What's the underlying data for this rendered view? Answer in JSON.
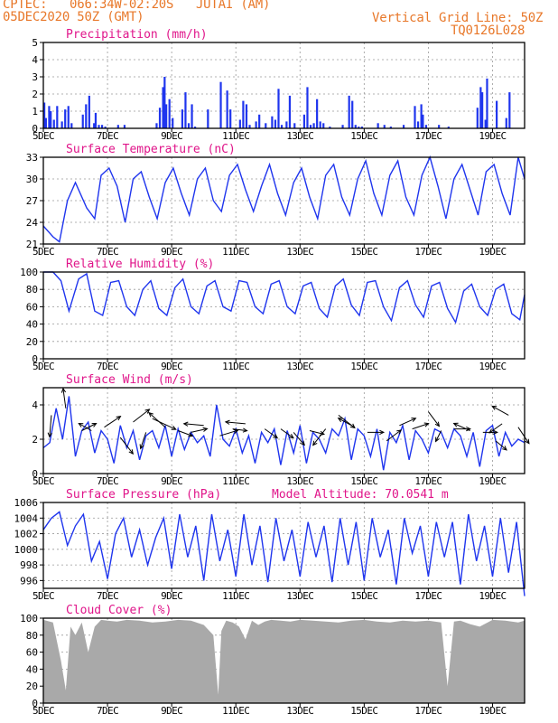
{
  "header": {
    "line1": "CPTEC:   066:34W-02:20S   JUTAI (AM)",
    "line2": "05DEC2020 50Z (GMT)",
    "grid_note": "Vertical Grid Line: 50Z",
    "code": "TQ0126L028"
  },
  "model_altitude": "Model Altitude: 70.0541 m",
  "colors": {
    "header": "#e8782a",
    "title": "#e0158a",
    "series": "#1f35ee",
    "cloud": "#a9a9a9",
    "arrow": "#000000"
  },
  "chart_data": [
    {
      "id": "precip",
      "type": "bar",
      "title": "Precipitation (mm/h)",
      "xlim": [
        0,
        15
      ],
      "ylim": [
        0,
        5
      ],
      "yticks": [
        0,
        1,
        2,
        3,
        4,
        5
      ],
      "xticks": [
        "5DEC",
        "7DEC",
        "9DEC",
        "11DEC",
        "13DEC",
        "15DEC",
        "17DEC",
        "19DEC"
      ],
      "xtick_pos": [
        0,
        2,
        4,
        6,
        8,
        10,
        12,
        14
      ],
      "x": [
        0.0,
        0.05,
        0.15,
        0.2,
        0.3,
        0.4,
        0.55,
        0.65,
        0.75,
        0.85,
        1.2,
        1.3,
        1.4,
        1.55,
        1.6,
        1.7,
        1.8,
        1.9,
        2.3,
        2.5,
        3.5,
        3.6,
        3.7,
        3.75,
        3.8,
        3.9,
        4.0,
        4.3,
        4.4,
        4.5,
        4.6,
        4.7,
        5.1,
        5.5,
        5.7,
        5.8,
        6.1,
        6.2,
        6.3,
        6.4,
        6.6,
        6.7,
        6.9,
        7.1,
        7.2,
        7.3,
        7.4,
        7.55,
        7.65,
        7.8,
        8.1,
        8.2,
        8.3,
        8.4,
        8.5,
        8.6,
        8.7,
        8.9,
        9.3,
        9.5,
        9.6,
        9.7,
        9.8,
        9.9,
        10.4,
        10.6,
        10.8,
        11.2,
        11.55,
        11.65,
        11.75,
        11.8,
        11.9,
        12.3,
        12.6,
        13.5,
        13.6,
        13.65,
        13.75,
        13.8,
        14.1,
        14.4,
        14.5
      ],
      "values": [
        1.5,
        0.6,
        1.3,
        1.0,
        0.5,
        1.3,
        0.4,
        1.1,
        1.3,
        0.3,
        0.8,
        1.4,
        1.9,
        0.3,
        0.9,
        0.2,
        0.2,
        0.1,
        0.2,
        0.2,
        0.3,
        1.2,
        2.4,
        3.0,
        1.4,
        1.7,
        0.6,
        1.1,
        2.1,
        0.3,
        1.4,
        0.1,
        1.1,
        2.7,
        2.2,
        1.1,
        0.5,
        1.6,
        1.4,
        0.2,
        0.4,
        0.8,
        0.3,
        0.7,
        0.5,
        2.3,
        0.2,
        0.4,
        1.9,
        0.3,
        0.8,
        2.4,
        0.2,
        0.3,
        1.7,
        0.4,
        0.3,
        0.1,
        0.2,
        1.9,
        1.6,
        0.2,
        0.1,
        0.1,
        0.3,
        0.2,
        0.1,
        0.2,
        1.3,
        0.4,
        1.4,
        0.8,
        0.2,
        0.2,
        0.1,
        1.2,
        2.4,
        2.1,
        0.5,
        2.9,
        1.6,
        0.6,
        2.1
      ]
    },
    {
      "id": "temp",
      "type": "line",
      "title": "Surface Temperature (nC)",
      "xlim": [
        0,
        15
      ],
      "ylim": [
        21,
        33
      ],
      "yticks": [
        21,
        24,
        27,
        30,
        33
      ],
      "xticks": [
        "5DEC",
        "7DEC",
        "9DEC",
        "11DEC",
        "13DEC",
        "15DEC",
        "17DEC",
        "19DEC"
      ],
      "xtick_pos": [
        0,
        2,
        4,
        6,
        8,
        10,
        12,
        14
      ],
      "x": [
        0.0,
        0.3,
        0.5,
        0.75,
        1.0,
        1.35,
        1.6,
        1.8,
        2.05,
        2.3,
        2.55,
        2.8,
        3.05,
        3.3,
        3.55,
        3.8,
        4.05,
        4.3,
        4.55,
        4.8,
        5.05,
        5.3,
        5.55,
        5.8,
        6.05,
        6.3,
        6.55,
        6.8,
        7.05,
        7.3,
        7.55,
        7.8,
        8.05,
        8.3,
        8.55,
        8.8,
        9.05,
        9.3,
        9.55,
        9.8,
        10.05,
        10.3,
        10.55,
        10.8,
        11.05,
        11.3,
        11.55,
        11.8,
        12.05,
        12.3,
        12.55,
        12.8,
        13.05,
        13.3,
        13.55,
        13.8,
        14.05,
        14.3,
        14.55,
        14.8,
        15.0
      ],
      "values": [
        23.5,
        22.0,
        21.3,
        27.0,
        29.5,
        26.0,
        24.5,
        30.5,
        31.5,
        29.0,
        24.0,
        30.0,
        31.0,
        27.5,
        24.5,
        29.5,
        31.5,
        28.0,
        25.0,
        30.0,
        31.5,
        27.0,
        25.5,
        30.5,
        32.0,
        28.5,
        25.5,
        29.0,
        32.0,
        28.0,
        25.0,
        29.5,
        31.5,
        27.5,
        24.5,
        30.5,
        32.0,
        27.5,
        25.0,
        30.0,
        32.5,
        28.0,
        25.0,
        30.5,
        32.5,
        27.5,
        25.0,
        30.5,
        33.0,
        29.0,
        24.5,
        30.0,
        32.0,
        28.5,
        25.0,
        31.0,
        32.0,
        28.0,
        25.0,
        33.0,
        30.0
      ]
    },
    {
      "id": "humidity",
      "type": "line",
      "title": "Relative Humidity (%)",
      "xlim": [
        0,
        15
      ],
      "ylim": [
        0,
        100
      ],
      "yticks": [
        0,
        20,
        40,
        60,
        80,
        100
      ],
      "xticks": [
        "5DEC",
        "7DEC",
        "9DEC",
        "11DEC",
        "13DEC",
        "15DEC",
        "17DEC",
        "19DEC"
      ],
      "xtick_pos": [
        0,
        2,
        4,
        6,
        8,
        10,
        12,
        14
      ],
      "x": [
        0.0,
        0.3,
        0.55,
        0.8,
        1.1,
        1.35,
        1.6,
        1.85,
        2.1,
        2.35,
        2.6,
        2.85,
        3.1,
        3.35,
        3.6,
        3.85,
        4.1,
        4.35,
        4.6,
        4.85,
        5.1,
        5.35,
        5.6,
        5.85,
        6.1,
        6.35,
        6.6,
        6.85,
        7.1,
        7.35,
        7.6,
        7.85,
        8.1,
        8.35,
        8.6,
        8.85,
        9.1,
        9.35,
        9.6,
        9.85,
        10.1,
        10.35,
        10.6,
        10.85,
        11.1,
        11.35,
        11.6,
        11.85,
        12.1,
        12.35,
        12.6,
        12.85,
        13.1,
        13.35,
        13.6,
        13.85,
        14.1,
        14.35,
        14.6,
        14.85,
        15.0
      ],
      "values": [
        100,
        100,
        90,
        55,
        92,
        98,
        55,
        50,
        88,
        90,
        60,
        50,
        80,
        90,
        58,
        50,
        82,
        92,
        60,
        52,
        84,
        90,
        60,
        55,
        90,
        88,
        60,
        52,
        86,
        90,
        60,
        52,
        84,
        88,
        58,
        48,
        84,
        92,
        62,
        50,
        88,
        90,
        60,
        44,
        82,
        90,
        62,
        48,
        84,
        88,
        58,
        42,
        78,
        86,
        60,
        50,
        80,
        86,
        52,
        45,
        74
      ]
    },
    {
      "id": "wind",
      "type": "line",
      "title": "Surface Wind (m/s)",
      "xlim": [
        0,
        15
      ],
      "ylim": [
        0,
        5
      ],
      "yticks": [
        0,
        2,
        4
      ],
      "xticks": [
        "5DEC",
        "7DEC",
        "9DEC",
        "11DEC",
        "13DEC",
        "15DEC",
        "17DEC",
        "19DEC"
      ],
      "xtick_pos": [
        0,
        2,
        4,
        6,
        8,
        10,
        12,
        14
      ],
      "x": [
        0.0,
        0.2,
        0.4,
        0.6,
        0.8,
        1.0,
        1.2,
        1.4,
        1.6,
        1.8,
        2.0,
        2.2,
        2.4,
        2.6,
        2.8,
        3.0,
        3.2,
        3.4,
        3.6,
        3.8,
        4.0,
        4.2,
        4.4,
        4.6,
        4.8,
        5.0,
        5.2,
        5.4,
        5.6,
        5.8,
        6.0,
        6.2,
        6.4,
        6.6,
        6.8,
        7.0,
        7.2,
        7.4,
        7.6,
        7.8,
        8.0,
        8.2,
        8.4,
        8.6,
        8.8,
        9.0,
        9.2,
        9.4,
        9.6,
        9.8,
        10.0,
        10.2,
        10.4,
        10.6,
        10.8,
        11.0,
        11.2,
        11.4,
        11.6,
        11.8,
        12.0,
        12.2,
        12.4,
        12.6,
        12.8,
        13.0,
        13.2,
        13.4,
        13.6,
        13.8,
        14.0,
        14.2,
        14.4,
        14.6,
        14.8,
        15.0
      ],
      "values": [
        1.5,
        1.8,
        3.8,
        2.0,
        4.5,
        1.0,
        2.5,
        3.0,
        1.2,
        2.5,
        2.0,
        0.6,
        2.8,
        1.5,
        2.5,
        0.8,
        2.2,
        2.5,
        1.5,
        2.8,
        1.0,
        2.6,
        1.4,
        2.4,
        1.8,
        2.2,
        1.0,
        4.0,
        2.0,
        1.6,
        2.6,
        1.2,
        2.2,
        0.6,
        2.4,
        1.8,
        2.6,
        0.5,
        2.5,
        1.2,
        2.8,
        0.6,
        2.4,
        2.0,
        1.2,
        2.6,
        2.2,
        3.2,
        0.8,
        2.6,
        2.2,
        1.0,
        2.6,
        0.2,
        2.4,
        1.8,
        2.8,
        0.8,
        2.5,
        2.0,
        1.2,
        2.6,
        2.4,
        1.5,
        2.6,
        2.2,
        1.0,
        2.4,
        0.4,
        2.5,
        2.8,
        1.0,
        2.4,
        1.6,
        2.0,
        1.8
      ],
      "arrows": [
        {
          "x": 0.25,
          "y": 3.4,
          "dx": -2,
          "dy": 24
        },
        {
          "x": 0.7,
          "y": 3.8,
          "dx": -3,
          "dy": -22
        },
        {
          "x": 1.2,
          "y": 2.5,
          "dx": 16,
          "dy": -8
        },
        {
          "x": 1.5,
          "y": 2.5,
          "dx": -14,
          "dy": -8
        },
        {
          "x": 1.9,
          "y": 2.7,
          "dx": 18,
          "dy": -12
        },
        {
          "x": 2.4,
          "y": 2.1,
          "dx": 14,
          "dy": 18
        },
        {
          "x": 2.8,
          "y": 3.0,
          "dx": 18,
          "dy": -14
        },
        {
          "x": 3.2,
          "y": 2.4,
          "dx": -6,
          "dy": 18
        },
        {
          "x": 3.4,
          "y": 3.2,
          "dx": 26,
          "dy": 12
        },
        {
          "x": 3.8,
          "y": 2.7,
          "dx": -18,
          "dy": -16
        },
        {
          "x": 4.2,
          "y": 2.5,
          "dx": 16,
          "dy": 6
        },
        {
          "x": 4.6,
          "y": 2.4,
          "dx": 18,
          "dy": -4
        },
        {
          "x": 5.0,
          "y": 2.8,
          "dx": -22,
          "dy": -2
        },
        {
          "x": 5.5,
          "y": 2.2,
          "dx": 20,
          "dy": -6
        },
        {
          "x": 5.9,
          "y": 2.6,
          "dx": 16,
          "dy": 2
        },
        {
          "x": 6.3,
          "y": 2.9,
          "dx": -22,
          "dy": -2
        },
        {
          "x": 6.9,
          "y": 2.6,
          "dx": 14,
          "dy": 10
        },
        {
          "x": 7.4,
          "y": 2.6,
          "dx": 14,
          "dy": 10
        },
        {
          "x": 7.8,
          "y": 2.4,
          "dx": 12,
          "dy": 14
        },
        {
          "x": 8.3,
          "y": 2.5,
          "dx": 16,
          "dy": 4
        },
        {
          "x": 8.8,
          "y": 2.6,
          "dx": -14,
          "dy": 18
        },
        {
          "x": 9.2,
          "y": 3.4,
          "dx": 18,
          "dy": 14
        },
        {
          "x": 9.7,
          "y": 2.7,
          "dx": -18,
          "dy": -10
        },
        {
          "x": 10.1,
          "y": 2.4,
          "dx": 18,
          "dy": 0
        },
        {
          "x": 10.7,
          "y": 1.9,
          "dx": 16,
          "dy": -12
        },
        {
          "x": 11.1,
          "y": 2.8,
          "dx": 18,
          "dy": -8
        },
        {
          "x": 11.5,
          "y": 2.6,
          "dx": 18,
          "dy": -6
        },
        {
          "x": 12.0,
          "y": 3.6,
          "dx": 12,
          "dy": 16
        },
        {
          "x": 12.4,
          "y": 2.5,
          "dx": -6,
          "dy": 12
        },
        {
          "x": 12.8,
          "y": 2.6,
          "dx": 18,
          "dy": 0
        },
        {
          "x": 13.3,
          "y": 2.5,
          "dx": -18,
          "dy": -8
        },
        {
          "x": 13.7,
          "y": 2.4,
          "dx": 16,
          "dy": 0
        },
        {
          "x": 14.1,
          "y": 1.9,
          "dx": 12,
          "dy": 10
        },
        {
          "x": 14.5,
          "y": 3.4,
          "dx": -18,
          "dy": -10
        },
        {
          "x": 14.8,
          "y": 2.7,
          "dx": 12,
          "dy": 18
        },
        {
          "x": 14.3,
          "y": 2.9,
          "dx": -14,
          "dy": 10
        }
      ]
    },
    {
      "id": "pressure",
      "type": "line",
      "title": "Surface Pressure (hPa)",
      "xlim": [
        0,
        15
      ],
      "ylim": [
        995,
        1006
      ],
      "yticks": [
        996,
        998,
        1000,
        1002,
        1004,
        1006
      ],
      "xticks": [
        "5DEC",
        "7DEC",
        "9DEC",
        "11DEC",
        "13DEC",
        "15DEC",
        "17DEC",
        "19DEC"
      ],
      "xtick_pos": [
        0,
        2,
        4,
        6,
        8,
        10,
        12,
        14
      ],
      "x": [
        0.0,
        0.25,
        0.5,
        0.75,
        1.0,
        1.25,
        1.5,
        1.75,
        2.0,
        2.25,
        2.5,
        2.75,
        3.0,
        3.25,
        3.5,
        3.75,
        4.0,
        4.25,
        4.5,
        4.75,
        5.0,
        5.25,
        5.5,
        5.75,
        6.0,
        6.25,
        6.5,
        6.75,
        7.0,
        7.25,
        7.5,
        7.75,
        8.0,
        8.25,
        8.5,
        8.75,
        9.0,
        9.25,
        9.5,
        9.75,
        10.0,
        10.25,
        10.5,
        10.75,
        11.0,
        11.25,
        11.5,
        11.75,
        12.0,
        12.25,
        12.5,
        12.75,
        13.0,
        13.25,
        13.5,
        13.75,
        14.0,
        14.25,
        14.5,
        14.75,
        15.0
      ],
      "values": [
        1002.5,
        1004.0,
        1004.8,
        1000.5,
        1003.0,
        1004.5,
        998.5,
        1001.0,
        996.2,
        1002.0,
        1004.0,
        999.0,
        1002.5,
        998.0,
        1001.5,
        1004.0,
        997.5,
        1004.5,
        999.0,
        1003.0,
        996.0,
        1004.5,
        998.5,
        1002.5,
        996.5,
        1004.5,
        998.0,
        1003.0,
        995.8,
        1004.0,
        998.5,
        1002.5,
        996.5,
        1003.5,
        999.0,
        1003.0,
        995.8,
        1004.0,
        998.0,
        1003.5,
        996.0,
        1004.0,
        999.0,
        1002.5,
        995.5,
        1004.0,
        999.5,
        1003.0,
        996.5,
        1003.5,
        999.0,
        1003.5,
        995.5,
        1004.5,
        998.5,
        1003.0,
        996.5,
        1004.0,
        997.0,
        1003.5,
        994.0
      ]
    },
    {
      "id": "cloud",
      "type": "area",
      "title": "Cloud Cover (%)",
      "xlim": [
        0,
        15
      ],
      "ylim": [
        0,
        100
      ],
      "yticks": [
        0,
        20,
        40,
        60,
        80,
        100
      ],
      "xticks": [
        "5DEC",
        "7DEC",
        "9DEC",
        "11DEC",
        "13DEC",
        "15DEC",
        "17DEC",
        "19DEC"
      ],
      "xtick_pos": [
        0,
        2,
        4,
        6,
        8,
        10,
        12,
        14
      ],
      "x": [
        0.0,
        0.3,
        0.55,
        0.7,
        0.85,
        1.0,
        1.2,
        1.4,
        1.6,
        1.8,
        2.0,
        2.3,
        2.6,
        3.0,
        3.4,
        3.8,
        4.2,
        4.6,
        5.0,
        5.3,
        5.45,
        5.55,
        5.7,
        5.9,
        6.1,
        6.3,
        6.5,
        6.7,
        6.9,
        7.1,
        7.4,
        7.7,
        8.0,
        8.4,
        8.8,
        9.2,
        9.6,
        10.0,
        10.4,
        10.8,
        11.2,
        11.6,
        12.0,
        12.4,
        12.6,
        12.8,
        13.0,
        13.3,
        13.6,
        14.0,
        14.4,
        14.8,
        15.0
      ],
      "values": [
        98,
        95,
        50,
        15,
        90,
        80,
        95,
        60,
        90,
        98,
        97,
        96,
        98,
        97,
        95,
        96,
        98,
        97,
        92,
        80,
        10,
        85,
        97,
        95,
        90,
        75,
        97,
        92,
        96,
        98,
        97,
        96,
        98,
        97,
        96,
        95,
        97,
        98,
        96,
        95,
        97,
        96,
        97,
        95,
        20,
        96,
        97,
        93,
        90,
        98,
        97,
        95,
        97
      ]
    }
  ]
}
